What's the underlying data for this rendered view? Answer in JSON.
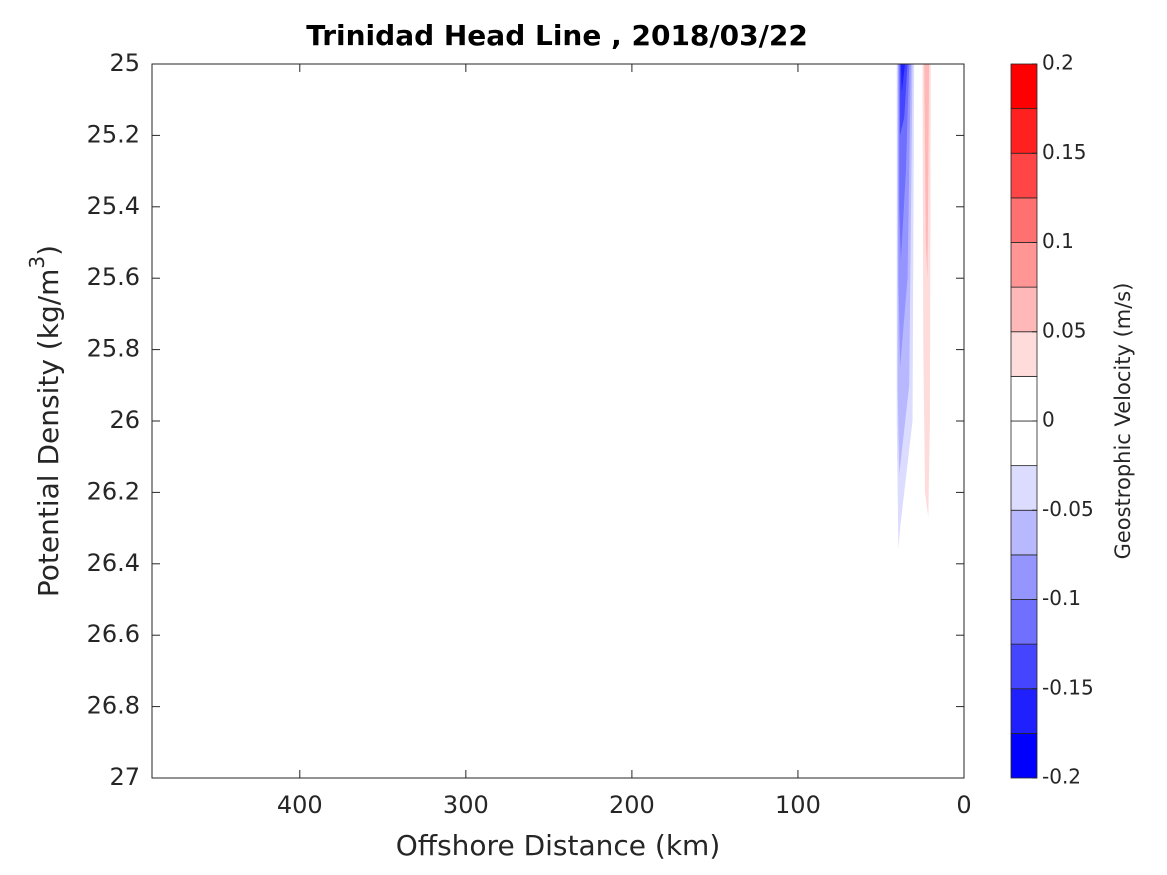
{
  "chart_data": {
    "type": "contour",
    "title": "Trinidad Head Line , 2018/03/22",
    "xlabel": "Offshore Distance (km)",
    "ylabel": {
      "text": "Potential Density (kg/m",
      "sup": "3",
      "end": ")"
    },
    "xlim": [
      489,
      0
    ],
    "xticks": [
      400,
      300,
      200,
      100,
      0
    ],
    "ylim": [
      27,
      25
    ],
    "yticks": [
      25,
      25.2,
      25.4,
      25.6,
      25.8,
      26,
      26.2,
      26.4,
      26.6,
      26.8,
      27
    ],
    "regions": [
      {
        "level": -0.025,
        "x": [
          40.5,
          40.5,
          39.5,
          38.5,
          31,
          30
        ],
        "y": [
          25,
          26,
          26.36,
          26.3,
          26.0,
          25
        ]
      },
      {
        "level": -0.05,
        "x": [
          40,
          40,
          39,
          33,
          31
        ],
        "y": [
          25,
          25.9,
          26.15,
          25.9,
          25
        ]
      },
      {
        "level": -0.075,
        "x": [
          39.5,
          39.5,
          38.5,
          34,
          32
        ],
        "y": [
          25,
          25.6,
          25.85,
          25.6,
          25
        ]
      },
      {
        "level": -0.1,
        "x": [
          39,
          39,
          38,
          35,
          33
        ],
        "y": [
          25,
          25.4,
          25.55,
          25.3,
          25
        ]
      },
      {
        "level": -0.125,
        "x": [
          38.5,
          38.5,
          36,
          34
        ],
        "y": [
          25,
          25.2,
          25.15,
          25
        ]
      },
      {
        "level": -0.15,
        "x": [
          38,
          37.5,
          35.5
        ],
        "y": [
          25,
          25.08,
          25
        ]
      },
      {
        "level": 0.025,
        "x": [
          25,
          24.5,
          23.5,
          21.5,
          20.5,
          20
        ],
        "y": [
          25,
          25.8,
          26.2,
          26.27,
          26,
          25
        ]
      },
      {
        "level": 0.05,
        "x": [
          24,
          23,
          22,
          21
        ],
        "y": [
          25,
          25.5,
          25.6,
          25
        ]
      }
    ],
    "colorbar": {
      "label": "Geostrophic Velocity (m/s)",
      "levels": [
        -0.2,
        -0.175,
        -0.15,
        -0.125,
        -0.1,
        -0.075,
        -0.05,
        -0.025,
        0,
        0.025,
        0.05,
        0.075,
        0.1,
        0.125,
        0.15,
        0.175,
        0.2
      ],
      "colors": [
        "#0000ff",
        "#2020ff",
        "#4545ff",
        "#7070ff",
        "#9595ff",
        "#b8b8ff",
        "#dcdcff",
        "#ffffff",
        "#ffffff",
        "#ffdcdc",
        "#ffb8b8",
        "#ff9595",
        "#ff7070",
        "#ff4545",
        "#ff2020",
        "#ff0000"
      ],
      "ticks": [
        -0.2,
        -0.15,
        -0.1,
        -0.05,
        0,
        0.05,
        0.1,
        0.15,
        0.2
      ]
    }
  }
}
